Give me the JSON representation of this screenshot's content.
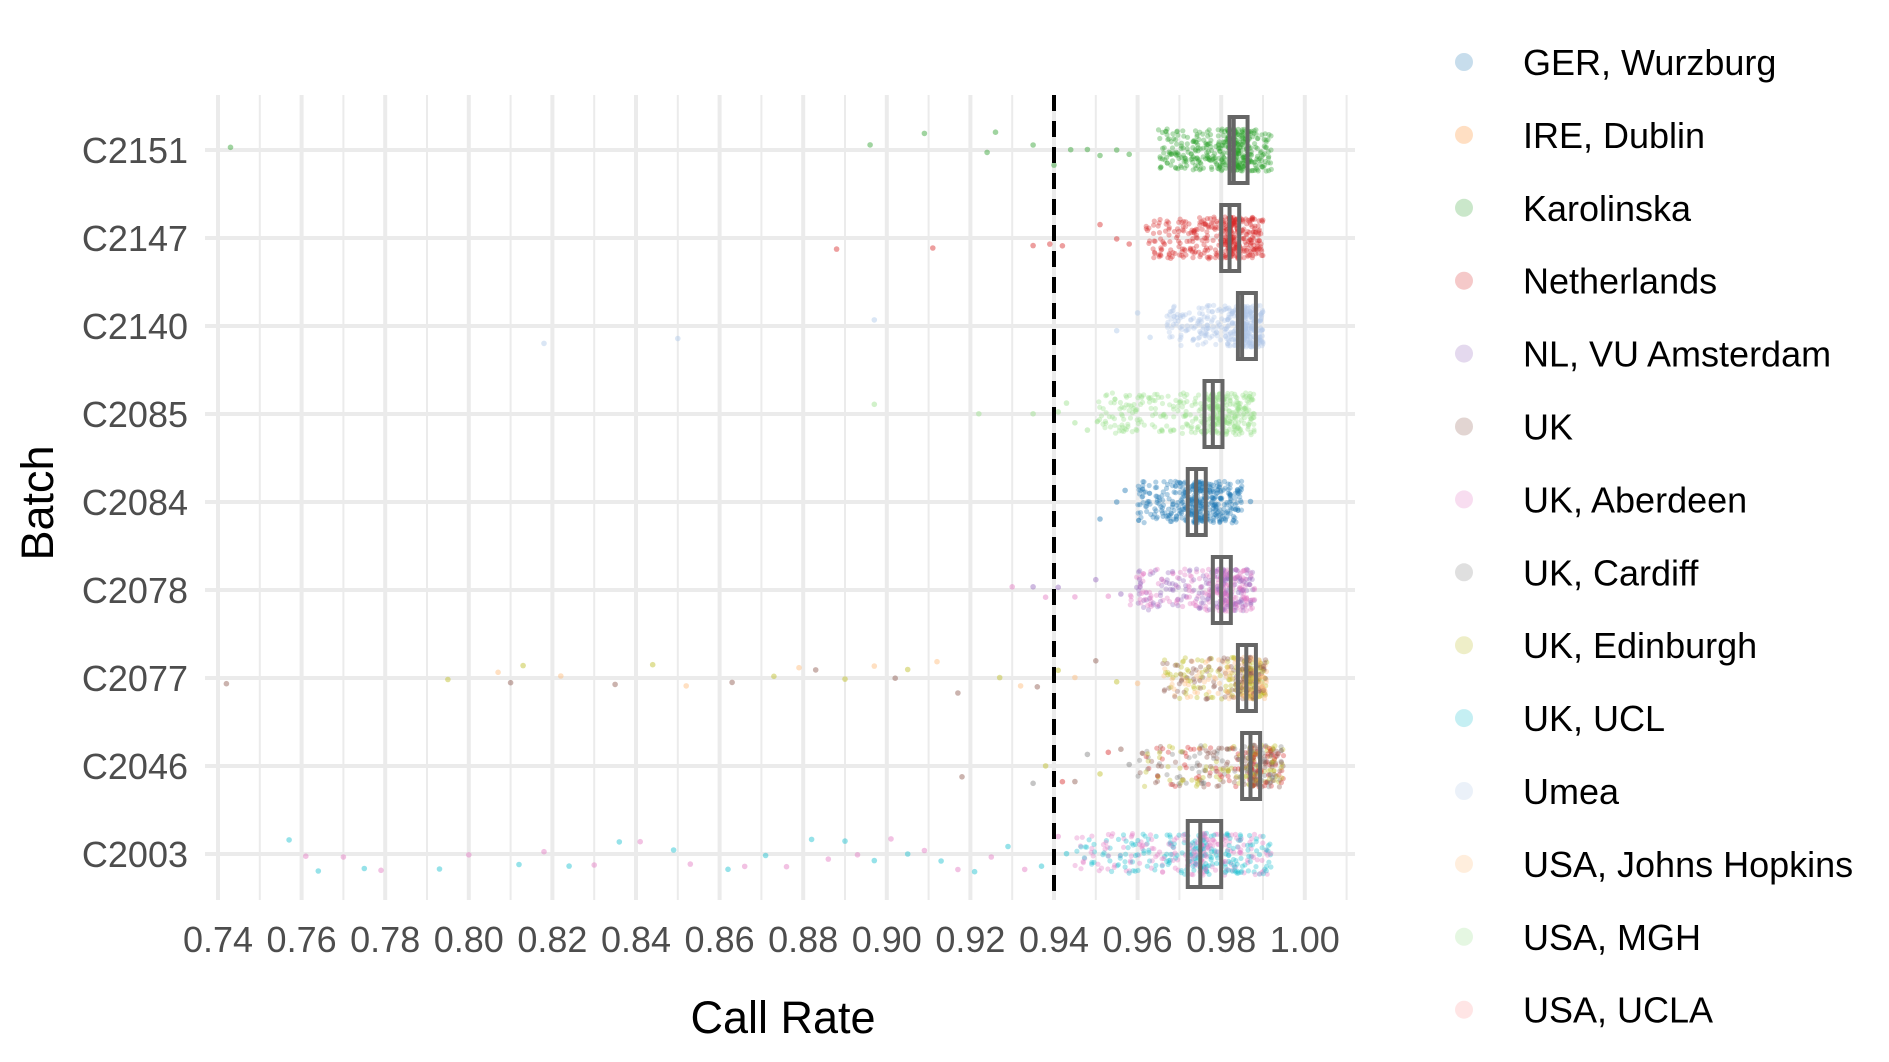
{
  "chart_data": {
    "type": "scatter",
    "title": "",
    "xlabel": "Call Rate",
    "ylabel": "Batch",
    "xlim": [
      0.74,
      1.01
    ],
    "x_ticks": [
      "0.74",
      "0.76",
      "0.78",
      "0.80",
      "0.82",
      "0.84",
      "0.86",
      "0.88",
      "0.90",
      "0.92",
      "0.94",
      "0.96",
      "0.98",
      "1.00"
    ],
    "categories": [
      "C2151",
      "C2147",
      "C2140",
      "C2085",
      "C2084",
      "C2078",
      "C2077",
      "C2046",
      "C2003"
    ],
    "threshold_line": 0.94,
    "grid": true,
    "legend_position": "right",
    "legend": [
      {
        "name": "GER, Wurzburg",
        "color": "#1f77b4"
      },
      {
        "name": "IRE, Dublin",
        "color": "#ff7f0e"
      },
      {
        "name": "Karolinska",
        "color": "#2ca02c"
      },
      {
        "name": "Netherlands",
        "color": "#d62728"
      },
      {
        "name": "NL, VU Amsterdam",
        "color": "#9467bd"
      },
      {
        "name": "UK",
        "color": "#8c564b"
      },
      {
        "name": "UK, Aberdeen",
        "color": "#e377c2"
      },
      {
        "name": "UK, Cardiff",
        "color": "#7f7f7f"
      },
      {
        "name": "UK, Edinburgh",
        "color": "#bcbd22"
      },
      {
        "name": "UK, UCL",
        "color": "#17becf"
      },
      {
        "name": "Umea",
        "color": "#aec7e8"
      },
      {
        "name": "USA, Johns Hopkins",
        "color": "#ffbb78"
      },
      {
        "name": "USA, MGH",
        "color": "#98df8a"
      },
      {
        "name": "USA, UCLA",
        "color": "#ff9896"
      }
    ],
    "batches": [
      {
        "batch": "C2151",
        "colors": [
          "#2ca02c"
        ],
        "core_range": [
          0.965,
          0.992
        ],
        "boxplot": {
          "q1": 0.982,
          "median": 0.983,
          "q3": 0.985
        },
        "outliers": [
          0.743,
          0.896,
          0.909,
          0.924,
          0.926,
          0.935,
          0.94,
          0.944,
          0.948,
          0.951,
          0.955,
          0.958
        ]
      },
      {
        "batch": "C2147",
        "colors": [
          "#d62728"
        ],
        "core_range": [
          0.962,
          0.99
        ],
        "boxplot": {
          "q1": 0.98,
          "median": 0.982,
          "q3": 0.984
        },
        "outliers": [
          0.888,
          0.911,
          0.935,
          0.939,
          0.942,
          0.951,
          0.955,
          0.958
        ]
      },
      {
        "batch": "C2140",
        "colors": [
          "#aec7e8"
        ],
        "core_range": [
          0.967,
          0.99
        ],
        "boxplot": {
          "q1": 0.984,
          "median": 0.985,
          "q3": 0.987
        },
        "outliers": [
          0.818,
          0.85,
          0.897,
          0.955,
          0.96,
          0.963
        ]
      },
      {
        "batch": "C2085",
        "colors": [
          "#98df8a"
        ],
        "core_range": [
          0.95,
          0.988
        ],
        "boxplot": {
          "q1": 0.976,
          "median": 0.978,
          "q3": 0.98
        },
        "outliers": [
          0.897,
          0.922,
          0.935,
          0.941,
          0.943,
          0.945,
          0.948
        ]
      },
      {
        "batch": "C2084",
        "colors": [
          "#1f77b4"
        ],
        "core_range": [
          0.96,
          0.985
        ],
        "boxplot": {
          "q1": 0.972,
          "median": 0.974,
          "q3": 0.976
        },
        "outliers": [
          0.951,
          0.955,
          0.957,
          0.987
        ]
      },
      {
        "batch": "C2078",
        "colors": [
          "#e377c2",
          "#9467bd"
        ],
        "core_range": [
          0.958,
          0.988
        ],
        "boxplot": {
          "q1": 0.978,
          "median": 0.98,
          "q3": 0.982
        },
        "outliers": [
          0.93,
          0.935,
          0.938,
          0.941,
          0.945,
          0.95,
          0.953,
          0.956
        ]
      },
      {
        "batch": "C2077",
        "colors": [
          "#8c564b",
          "#bcbd22",
          "#ffbb78"
        ],
        "core_range": [
          0.966,
          0.991
        ],
        "boxplot": {
          "q1": 0.984,
          "median": 0.986,
          "q3": 0.987
        },
        "outliers": [
          0.742,
          0.795,
          0.807,
          0.81,
          0.813,
          0.822,
          0.835,
          0.844,
          0.852,
          0.863,
          0.873,
          0.879,
          0.883,
          0.89,
          0.897,
          0.902,
          0.905,
          0.912,
          0.917,
          0.927,
          0.932,
          0.936,
          0.941,
          0.945,
          0.95,
          0.955,
          0.96
        ]
      },
      {
        "batch": "C2046",
        "colors": [
          "#8c564b",
          "#7f7f7f",
          "#bcbd22",
          "#d62728"
        ],
        "core_range": [
          0.96,
          0.995
        ],
        "boxplot": {
          "q1": 0.985,
          "median": 0.987,
          "q3": 0.988
        },
        "outliers": [
          0.918,
          0.935,
          0.938,
          0.942,
          0.945,
          0.948,
          0.951,
          0.953,
          0.956,
          0.958
        ]
      },
      {
        "batch": "C2003",
        "colors": [
          "#17becf",
          "#e377c2"
        ],
        "core_range": [
          0.945,
          0.992
        ],
        "boxplot": {
          "q1": 0.972,
          "median": 0.975,
          "q3": 0.98
        },
        "outliers": [
          0.757,
          0.761,
          0.764,
          0.77,
          0.775,
          0.779,
          0.793,
          0.8,
          0.812,
          0.818,
          0.824,
          0.83,
          0.836,
          0.841,
          0.849,
          0.853,
          0.862,
          0.866,
          0.871,
          0.876,
          0.882,
          0.886,
          0.89,
          0.893,
          0.897,
          0.901,
          0.905,
          0.909,
          0.913,
          0.917,
          0.921,
          0.925,
          0.929,
          0.933,
          0.937,
          0.941,
          0.943
        ]
      }
    ]
  }
}
